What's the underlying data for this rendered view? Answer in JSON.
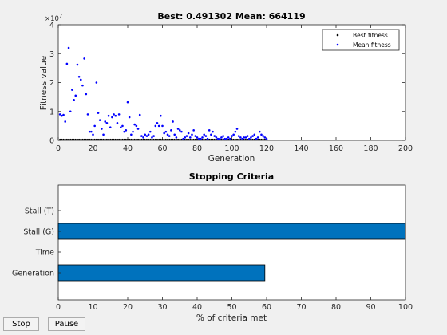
{
  "window": {
    "buttons": {
      "stop_label": "Stop",
      "pause_label": "Pause"
    }
  },
  "chart_data": [
    {
      "type": "scatter",
      "title": "Best: 0.491302 Mean: 664119",
      "xlabel": "Generation",
      "ylabel": "Fitness value",
      "y_exponent_label": "×10",
      "y_exponent_power": "7",
      "xlim": [
        0,
        200
      ],
      "ylim": [
        0,
        4
      ],
      "y_scale_note": "values in units of 1e7",
      "xticks": [
        0,
        20,
        40,
        60,
        80,
        100,
        120,
        140,
        160,
        180,
        200
      ],
      "yticks": [
        0,
        1,
        2,
        3,
        4
      ],
      "grid": false,
      "legend": {
        "placement": "top-right",
        "entries": [
          "Best fitness",
          "Mean fitness"
        ]
      },
      "colors": {
        "best": "#000000",
        "mean": "#0000ff"
      },
      "series": [
        {
          "name": "Best fitness",
          "x": [
            1,
            2,
            3,
            4,
            5,
            6,
            7,
            8,
            9,
            10,
            11,
            12,
            13,
            14,
            15,
            16,
            17,
            18,
            19,
            20,
            21,
            22,
            23,
            24,
            25,
            26,
            27,
            28,
            29,
            30,
            31,
            32,
            33,
            34,
            35,
            36,
            37,
            38,
            39,
            40,
            41,
            42,
            43,
            44,
            45,
            46,
            47,
            48,
            49,
            50,
            51,
            52,
            53,
            54,
            55,
            56,
            57,
            58,
            59,
            60,
            61,
            62,
            63,
            64,
            65,
            66,
            67,
            68,
            69,
            70,
            71,
            72,
            73,
            74,
            75,
            76,
            77,
            78,
            79,
            80,
            81,
            82,
            83,
            84,
            85,
            86,
            87,
            88,
            89,
            90,
            91,
            92,
            93,
            94,
            95,
            96,
            97,
            98,
            99,
            100,
            101,
            102,
            103,
            104,
            105,
            106,
            107,
            108,
            109,
            110,
            111,
            112,
            113,
            114,
            115,
            116,
            117,
            118,
            119,
            120
          ],
          "y": [
            0,
            0,
            0,
            0,
            0,
            0,
            0,
            0,
            0,
            0,
            0,
            0,
            0,
            0,
            0,
            0,
            0,
            0,
            0,
            0,
            0,
            0,
            0,
            0,
            0,
            0,
            0,
            0,
            0,
            0,
            0,
            0,
            0,
            0,
            0,
            0,
            0,
            0,
            0,
            0,
            0,
            0,
            0,
            0,
            0,
            0,
            0,
            0,
            0,
            0,
            0,
            0,
            0,
            0,
            0,
            0,
            0,
            0,
            0,
            0,
            0,
            0,
            0,
            0,
            0,
            0,
            0,
            0,
            0,
            0,
            0,
            0,
            0,
            0,
            0,
            0,
            0,
            0,
            0,
            0,
            0,
            0,
            0,
            0,
            0,
            0,
            0,
            0,
            0,
            0,
            0,
            0,
            0,
            0,
            0,
            0,
            0,
            0,
            0,
            0,
            0,
            0,
            0,
            0,
            0,
            0,
            0,
            0,
            0,
            0,
            0,
            0,
            0,
            0,
            0,
            0,
            0,
            0,
            0,
            0
          ]
        },
        {
          "name": "Mean fitness",
          "x": [
            1,
            2,
            3,
            4,
            5,
            6,
            7,
            8,
            9,
            10,
            11,
            12,
            13,
            14,
            15,
            16,
            17,
            18,
            19,
            20,
            21,
            22,
            23,
            24,
            25,
            26,
            27,
            28,
            29,
            30,
            31,
            32,
            33,
            34,
            35,
            36,
            37,
            38,
            39,
            40,
            41,
            42,
            43,
            44,
            45,
            46,
            47,
            48,
            49,
            50,
            51,
            52,
            53,
            54,
            55,
            56,
            57,
            58,
            59,
            60,
            61,
            62,
            63,
            64,
            65,
            66,
            67,
            68,
            69,
            70,
            71,
            72,
            73,
            74,
            75,
            76,
            77,
            78,
            79,
            80,
            81,
            82,
            83,
            84,
            85,
            86,
            87,
            88,
            89,
            90,
            91,
            92,
            93,
            94,
            95,
            96,
            97,
            98,
            99,
            100,
            101,
            102,
            103,
            104,
            105,
            106,
            107,
            108,
            109,
            110,
            111,
            112,
            113,
            114,
            115,
            116,
            117,
            118,
            119,
            120
          ],
          "y": [
            0.9,
            0.85,
            0.88,
            0.65,
            2.65,
            3.2,
            1.0,
            1.75,
            1.4,
            1.55,
            2.62,
            2.2,
            2.1,
            1.9,
            2.83,
            1.6,
            0.9,
            0.3,
            0.3,
            0.2,
            0.5,
            2.0,
            0.95,
            0.7,
            0.4,
            0.2,
            0.65,
            0.6,
            0.85,
            0.45,
            0.8,
            0.9,
            0.85,
            0.6,
            0.9,
            0.45,
            0.5,
            0.3,
            0.35,
            1.32,
            0.8,
            0.2,
            0.3,
            0.55,
            0.5,
            0.4,
            0.88,
            0.15,
            0.1,
            0.2,
            0.15,
            0.2,
            0.3,
            0.1,
            0.15,
            0.5,
            0.6,
            0.5,
            0.85,
            0.5,
            0.25,
            0.3,
            0.2,
            0.15,
            0.35,
            0.65,
            0.2,
            0.1,
            0.4,
            0.35,
            0.3,
            0.05,
            0.1,
            0.15,
            0.25,
            0.1,
            0.2,
            0.35,
            0.15,
            0.1,
            0.05,
            0.05,
            0.1,
            0.2,
            0.15,
            0.05,
            0.35,
            0.2,
            0.3,
            0.15,
            0.1,
            0.05,
            0.05,
            0.1,
            0.15,
            0.05,
            0.05,
            0.1,
            0.05,
            0.15,
            0.2,
            0.3,
            0.4,
            0.15,
            0.1,
            0.05,
            0.1,
            0.1,
            0.15,
            0.05,
            0.1,
            0.15,
            0.2,
            0.05,
            0.1,
            0.3,
            0.2,
            0.15,
            0.1,
            0.05
          ]
        }
      ]
    },
    {
      "type": "bar",
      "orientation": "horizontal",
      "title": "Stopping Criteria",
      "xlabel": "% of criteria met",
      "ylabel": "",
      "xlim": [
        0,
        100
      ],
      "xticks": [
        0,
        10,
        20,
        30,
        40,
        50,
        60,
        70,
        80,
        90,
        100
      ],
      "grid": false,
      "categories": [
        "Stall (T)",
        "Stall (G)",
        "Time",
        "Generation"
      ],
      "values": [
        0,
        100,
        0,
        59.5
      ],
      "colors": {
        "bar": "#0072bd"
      }
    }
  ]
}
